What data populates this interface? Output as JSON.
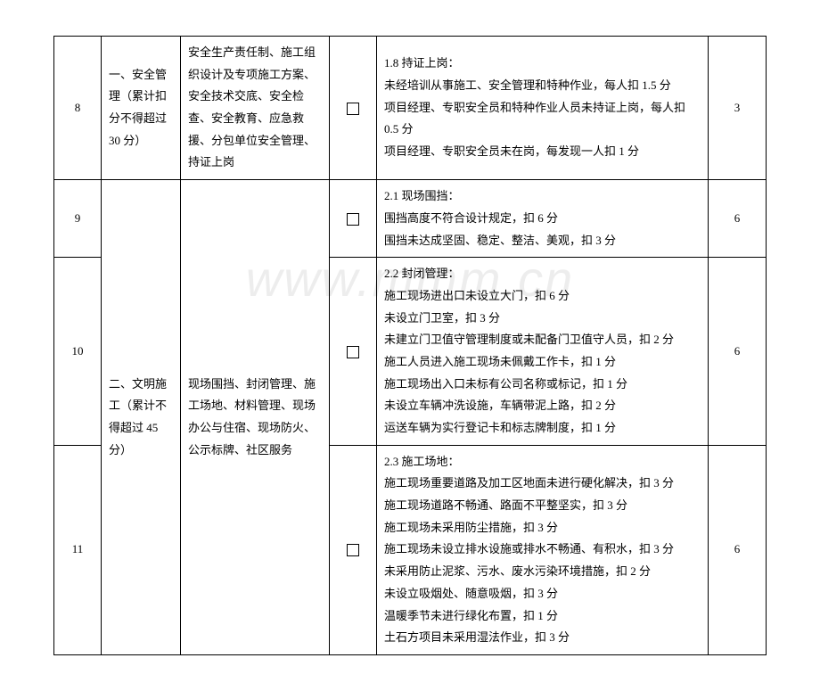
{
  "watermark": "www.mmm.cn",
  "rows": [
    {
      "num": "8",
      "category": "一、安全管理（累计扣分不得超过 30 分）",
      "description": "安全生产责任制、施工组织设计及专项施工方案、安全技术交底、安全检查、安全教育、应急救援、分包单位安全管理、持证上岗",
      "detail": "1.8 持证上岗：\n未经培训从事施工、安全管理和特种作业，每人扣 1.5 分\n项目经理、专职安全员和特种作业人员未持证上岗，每人扣 0.5 分\n项目经理、专职安全员未在岗，每发现一人扣 1 分",
      "score": "3"
    },
    {
      "num": "9",
      "category": "二、文明施工（累计不得超过 45 分）",
      "description": "现场围挡、封闭管理、施工场地、材料管理、现场办公与住宿、现场防火、公示标牌、社区服务",
      "detail": "2.1 现场围挡：\n围挡高度不符合设计规定，扣 6 分\n围挡未达成坚固、稳定、整洁、美观，扣 3 分",
      "score": "6"
    },
    {
      "num": "10",
      "detail": "2.2 封闭管理：\n施工现场进出口未设立大门，扣 6 分\n未设立门卫室，扣 3 分\n未建立门卫值守管理制度或未配备门卫值守人员，扣 2 分\n施工人员进入施工现场未佩戴工作卡，扣 1 分\n施工现场出入口未标有公司名称或标记，扣 1 分\n未设立车辆冲洗设施，车辆带泥上路，扣 2 分\n运送车辆为实行登记卡和标志牌制度，扣 1 分",
      "score": "6"
    },
    {
      "num": "11",
      "detail": "2.3 施工场地：\n施工现场重要道路及加工区地面未进行硬化解决，扣 3 分\n施工现场道路不畅通、路面不平整坚实，扣 3 分\n施工现场未采用防尘措施，扣 3 分\n施工现场未设立排水设施或排水不畅通、有积水，扣 3 分\n未采用防止泥浆、污水、废水污染环境措施，扣 2 分\n未设立吸烟处、随意吸烟，扣 3 分\n温暖季节未进行绿化布置，扣 1 分\n土石方项目未采用湿法作业，扣 3 分",
      "score": "6"
    }
  ]
}
